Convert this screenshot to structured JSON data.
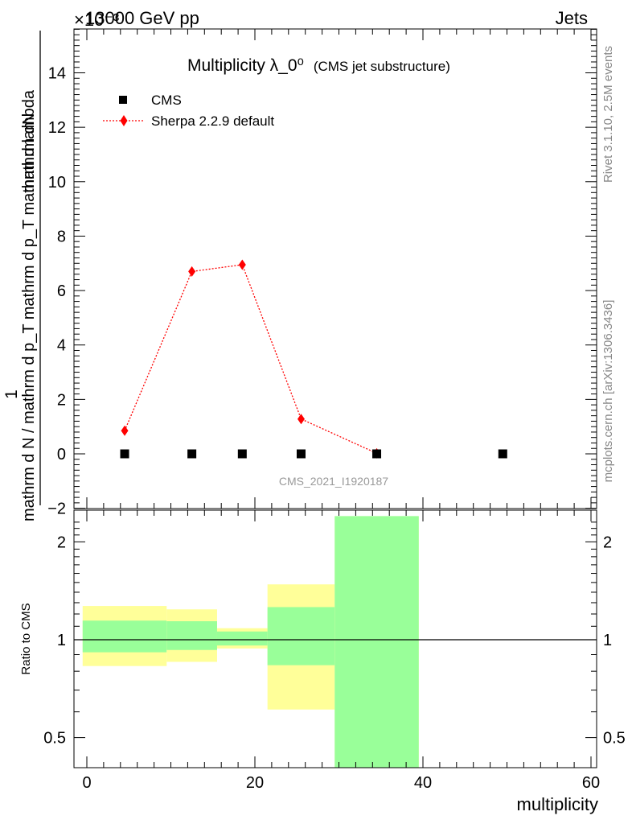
{
  "header": {
    "beam": "13000 GeV pp",
    "category": "Jets",
    "exponent_label": "×10⁻³",
    "side_right_top": "Rivet 3.1.10,  2.5M events",
    "side_right_bottom": "mcplots.cern.ch [arXiv:1306.3436]",
    "watermark": "CMS_2021_I1920187"
  },
  "chart_data": [
    {
      "type": "scatter",
      "title": "Multiplicity λ_0⁰",
      "subtitle": "(CMS jet substructure)",
      "ylabel_top": "1",
      "ylabel_numerator": "mathrm dN",
      "ylabel_denominator": "mathrm d N / mathrm d p_T mathrm d p_T mathrm d lambda",
      "xlim": [
        -2,
        60
      ],
      "ylim": [
        -2,
        15.8
      ],
      "y_scale_factor": "×10⁻³",
      "y_ticks": [
        -2,
        0,
        2,
        4,
        6,
        8,
        10,
        12,
        14
      ],
      "y_tick_labels": [
        "−2",
        "0",
        "2",
        "4",
        "6",
        "8",
        "10",
        "12",
        "14"
      ],
      "legend_position": "top-left",
      "series": [
        {
          "name": "CMS",
          "marker": "square",
          "color": "#000000",
          "x": [
            4.5,
            12.5,
            18.5,
            25.5,
            34.5,
            49.5
          ],
          "y": [
            0,
            0,
            0,
            0,
            0,
            0
          ]
        },
        {
          "name": "Sherpa 2.2.9 default",
          "marker": "diamond",
          "line": "dotted",
          "color": "#ff0000",
          "x": [
            4.5,
            12.5,
            18.5,
            25.5,
            34.5
          ],
          "y": [
            0.85,
            6.7,
            6.95,
            1.28,
            0.02
          ]
        }
      ]
    },
    {
      "type": "area",
      "ylabel": "Ratio to CMS",
      "xlabel": "multiplicity",
      "xlim": [
        -2,
        60
      ],
      "ylim": [
        0.4,
        2.4
      ],
      "y_scale": "log",
      "x_ticks": [
        0,
        20,
        40,
        60
      ],
      "x_tick_labels": [
        "0",
        "20",
        "40",
        "60"
      ],
      "y_ticks": [
        0.5,
        1,
        2
      ],
      "y_tick_labels": [
        "0.5",
        "1",
        "2"
      ],
      "reference_line": 1,
      "bands": [
        {
          "x_lo": -0.5,
          "x_hi": 9.5,
          "yellow": [
            0.83,
            1.27
          ],
          "green": [
            0.915,
            1.145
          ]
        },
        {
          "x_lo": 9.5,
          "x_hi": 15.5,
          "yellow": [
            0.855,
            1.24
          ],
          "green": [
            0.93,
            1.14
          ]
        },
        {
          "x_lo": 15.5,
          "x_hi": 21.5,
          "yellow": [
            0.94,
            1.085
          ],
          "green": [
            0.96,
            1.06
          ]
        },
        {
          "x_lo": 21.5,
          "x_hi": 29.5,
          "yellow": [
            0.61,
            1.48
          ],
          "green": [
            0.835,
            1.26
          ]
        },
        {
          "x_lo": 29.5,
          "x_hi": 39.5,
          "yellow": [
            0.4,
            2.4
          ],
          "green": [
            0.4,
            2.4
          ]
        }
      ],
      "colors": {
        "yellow": "#ffff99",
        "green": "#99ff99"
      }
    }
  ]
}
